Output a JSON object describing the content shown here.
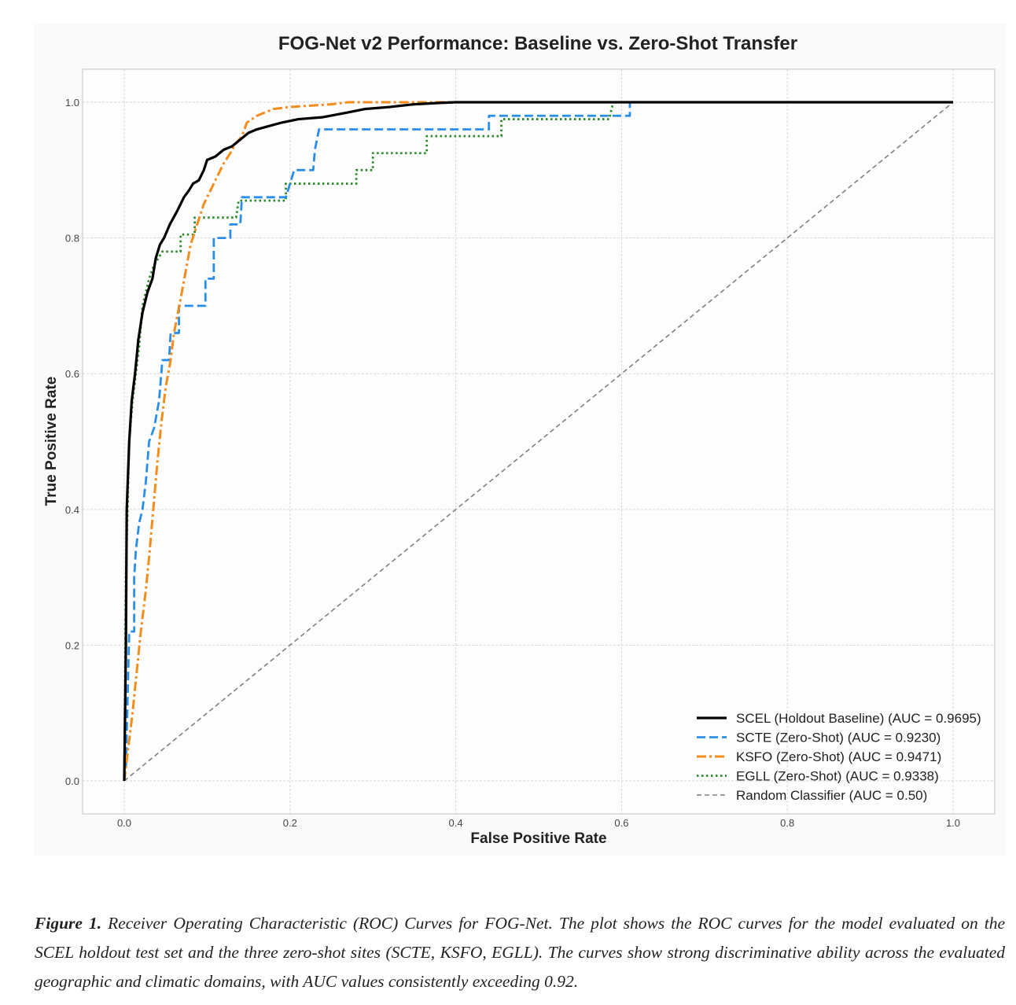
{
  "chart_data": {
    "type": "line",
    "title": "FOG-Net v2 Performance: Baseline vs. Zero-Shot Transfer",
    "xlabel": "False Positive Rate",
    "ylabel": "True Positive Rate",
    "xlim": [
      0,
      1
    ],
    "ylim": [
      0,
      1
    ],
    "xticks": [
      "0.0",
      "0.2",
      "0.4",
      "0.6",
      "0.8",
      "1.0"
    ],
    "yticks": [
      "0.0",
      "0.2",
      "0.4",
      "0.6",
      "0.8",
      "1.0"
    ],
    "grid": true,
    "legend_position": "lower-right",
    "series": [
      {
        "name": "SCEL (Holdout Baseline) (AUC = 0.9695)",
        "color": "#000000",
        "style": "solid",
        "points": [
          [
            0,
            0
          ],
          [
            0.002,
            0.2
          ],
          [
            0.003,
            0.4
          ],
          [
            0.006,
            0.5
          ],
          [
            0.009,
            0.56
          ],
          [
            0.013,
            0.6
          ],
          [
            0.017,
            0.65
          ],
          [
            0.022,
            0.69
          ],
          [
            0.028,
            0.72
          ],
          [
            0.034,
            0.74
          ],
          [
            0.038,
            0.77
          ],
          [
            0.043,
            0.79
          ],
          [
            0.048,
            0.8
          ],
          [
            0.055,
            0.82
          ],
          [
            0.064,
            0.84
          ],
          [
            0.072,
            0.86
          ],
          [
            0.078,
            0.87
          ],
          [
            0.083,
            0.88
          ],
          [
            0.09,
            0.885
          ],
          [
            0.096,
            0.9
          ],
          [
            0.1,
            0.915
          ],
          [
            0.11,
            0.92
          ],
          [
            0.12,
            0.93
          ],
          [
            0.13,
            0.935
          ],
          [
            0.14,
            0.945
          ],
          [
            0.15,
            0.955
          ],
          [
            0.16,
            0.96
          ],
          [
            0.175,
            0.965
          ],
          [
            0.19,
            0.97
          ],
          [
            0.21,
            0.975
          ],
          [
            0.24,
            0.978
          ],
          [
            0.27,
            0.985
          ],
          [
            0.29,
            0.99
          ],
          [
            0.32,
            0.993
          ],
          [
            0.35,
            0.997
          ],
          [
            0.38,
            0.999
          ],
          [
            0.4,
            1.0
          ],
          [
            1.0,
            1.0
          ]
        ]
      },
      {
        "name": "SCTE (Zero-Shot) (AUC = 0.9230)",
        "color": "#2a8ee8",
        "style": "dashed",
        "points": [
          [
            0,
            0
          ],
          [
            0.002,
            0.02
          ],
          [
            0.004,
            0.12
          ],
          [
            0.006,
            0.22
          ],
          [
            0.012,
            0.22
          ],
          [
            0.012,
            0.3
          ],
          [
            0.014,
            0.34
          ],
          [
            0.018,
            0.38
          ],
          [
            0.022,
            0.4
          ],
          [
            0.026,
            0.44
          ],
          [
            0.03,
            0.5
          ],
          [
            0.036,
            0.52
          ],
          [
            0.042,
            0.56
          ],
          [
            0.046,
            0.62
          ],
          [
            0.054,
            0.62
          ],
          [
            0.056,
            0.66
          ],
          [
            0.066,
            0.66
          ],
          [
            0.066,
            0.7
          ],
          [
            0.098,
            0.7
          ],
          [
            0.098,
            0.74
          ],
          [
            0.108,
            0.74
          ],
          [
            0.108,
            0.8
          ],
          [
            0.128,
            0.8
          ],
          [
            0.128,
            0.82
          ],
          [
            0.14,
            0.82
          ],
          [
            0.142,
            0.86
          ],
          [
            0.195,
            0.86
          ],
          [
            0.205,
            0.9
          ],
          [
            0.228,
            0.9
          ],
          [
            0.23,
            0.93
          ],
          [
            0.235,
            0.96
          ],
          [
            0.44,
            0.96
          ],
          [
            0.44,
            0.98
          ],
          [
            0.61,
            0.98
          ],
          [
            0.61,
            1.0
          ],
          [
            1.0,
            1.0
          ]
        ]
      },
      {
        "name": "KSFO (Zero-Shot) (AUC = 0.9471)",
        "color": "#f28c1a",
        "style": "dashdot",
        "points": [
          [
            0,
            0
          ],
          [
            0.005,
            0.05
          ],
          [
            0.01,
            0.1
          ],
          [
            0.015,
            0.16
          ],
          [
            0.02,
            0.22
          ],
          [
            0.026,
            0.28
          ],
          [
            0.03,
            0.33
          ],
          [
            0.035,
            0.4
          ],
          [
            0.04,
            0.47
          ],
          [
            0.045,
            0.53
          ],
          [
            0.05,
            0.58
          ],
          [
            0.056,
            0.62
          ],
          [
            0.06,
            0.66
          ],
          [
            0.068,
            0.71
          ],
          [
            0.074,
            0.75
          ],
          [
            0.08,
            0.79
          ],
          [
            0.088,
            0.82
          ],
          [
            0.096,
            0.85
          ],
          [
            0.104,
            0.87
          ],
          [
            0.112,
            0.89
          ],
          [
            0.12,
            0.91
          ],
          [
            0.128,
            0.925
          ],
          [
            0.135,
            0.94
          ],
          [
            0.142,
            0.95
          ],
          [
            0.148,
            0.97
          ],
          [
            0.16,
            0.98
          ],
          [
            0.18,
            0.99
          ],
          [
            0.2,
            0.993
          ],
          [
            0.25,
            0.997
          ],
          [
            0.27,
            1.0
          ],
          [
            1.0,
            1.0
          ]
        ]
      },
      {
        "name": "EGLL (Zero-Shot) (AUC = 0.9338)",
        "color": "#2a8a2a",
        "style": "dotted",
        "points": [
          [
            0,
            0
          ],
          [
            0.002,
            0.3
          ],
          [
            0.004,
            0.4
          ],
          [
            0.006,
            0.5
          ],
          [
            0.01,
            0.56
          ],
          [
            0.018,
            0.64
          ],
          [
            0.022,
            0.7
          ],
          [
            0.03,
            0.74
          ],
          [
            0.036,
            0.76
          ],
          [
            0.046,
            0.78
          ],
          [
            0.068,
            0.78
          ],
          [
            0.068,
            0.805
          ],
          [
            0.085,
            0.805
          ],
          [
            0.085,
            0.83
          ],
          [
            0.135,
            0.83
          ],
          [
            0.138,
            0.855
          ],
          [
            0.195,
            0.855
          ],
          [
            0.195,
            0.88
          ],
          [
            0.28,
            0.88
          ],
          [
            0.28,
            0.9
          ],
          [
            0.3,
            0.9
          ],
          [
            0.3,
            0.925
          ],
          [
            0.365,
            0.925
          ],
          [
            0.365,
            0.95
          ],
          [
            0.455,
            0.95
          ],
          [
            0.455,
            0.975
          ],
          [
            0.585,
            0.975
          ],
          [
            0.59,
            1.0
          ],
          [
            1.0,
            1.0
          ]
        ]
      },
      {
        "name": "Random Classifier (AUC = 0.50)",
        "color": "#808080",
        "style": "dashed-thin",
        "points": [
          [
            0,
            0
          ],
          [
            1,
            1
          ]
        ]
      }
    ]
  },
  "caption": {
    "label": "Figure 1.",
    "text": "Receiver Operating Characteristic (ROC) Curves for FOG-Net. The plot shows the ROC curves for the model evaluated on the SCEL holdout test set and the three zero-shot sites (SCTE, KSFO, EGLL). The curves show strong discriminative ability across the evaluated geographic and climatic domains, with AUC values consistently exceeding 0.92."
  }
}
